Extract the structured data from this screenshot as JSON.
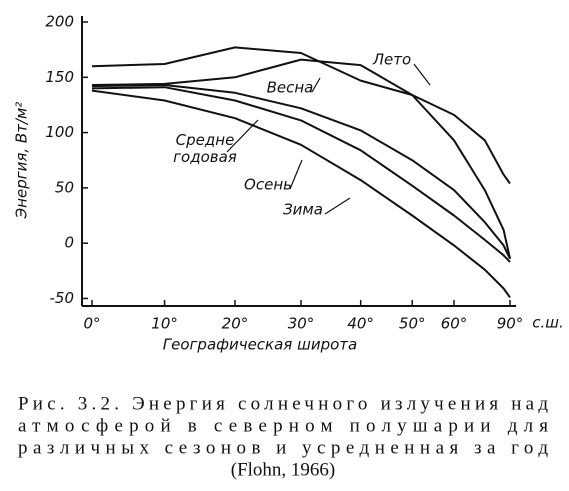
{
  "chart_data": {
    "type": "line",
    "y_label": "Энергия, Вт/м²",
    "x_label": "Географическая широта",
    "x_unit": "с.ш.",
    "xscale": "sin",
    "x": [
      0,
      10,
      20,
      30,
      40,
      50,
      60,
      70,
      80,
      90
    ],
    "xlim": [
      0,
      90
    ],
    "xticks": [
      {
        "value": 0,
        "label": "0°"
      },
      {
        "value": 10,
        "label": "10°"
      },
      {
        "value": 20,
        "label": "20°"
      },
      {
        "value": 30,
        "label": "30°"
      },
      {
        "value": 40,
        "label": "40°"
      },
      {
        "value": 50,
        "label": "50°"
      },
      {
        "value": 60,
        "label": "60°"
      },
      {
        "value": 90,
        "label": "90°"
      }
    ],
    "ylim": [
      -55,
      200
    ],
    "yticks": [
      -50,
      0,
      50,
      100,
      150,
      200
    ],
    "series": [
      {
        "name": "Лето",
        "color": "#111111",
        "values": [
          160,
          162,
          177,
          172,
          147,
          134,
          116,
          93,
          62,
          54
        ]
      },
      {
        "name": "Весна",
        "color": "#111111",
        "values": [
          143,
          144,
          150,
          166,
          161,
          134,
          93,
          48,
          12,
          -14
        ]
      },
      {
        "name": "Средне годовая",
        "color": "#111111",
        "values": [
          142,
          143,
          136,
          122,
          102,
          75,
          48,
          19,
          -2,
          -14
        ]
      },
      {
        "name": "Осень",
        "color": "#111111",
        "values": [
          140,
          141,
          129,
          111,
          84,
          52,
          25,
          3,
          -11,
          -17
        ]
      },
      {
        "name": "Зима",
        "color": "#111111",
        "values": [
          138,
          129,
          113,
          89,
          57,
          25,
          -2,
          -24,
          -41,
          -49
        ]
      }
    ]
  },
  "caption": [
    "Рис. 3.2. Энергия солнечного излучения над",
    "атмосферой в северном полушарии для",
    "различных сезонов и усредненная за год",
    "(Flohn, 1966)"
  ]
}
